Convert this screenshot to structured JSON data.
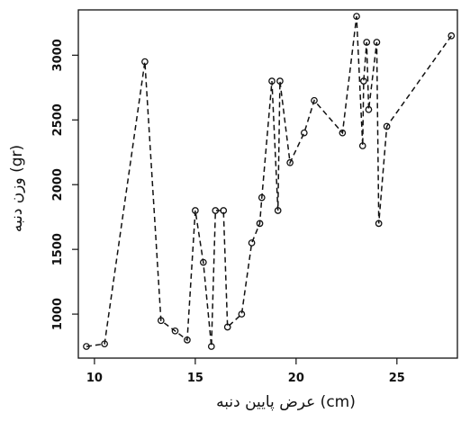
{
  "chart_data": {
    "type": "line",
    "xlabel": "عرض پایین دنبه (cm)",
    "ylabel": "وزن دنبه (gr)",
    "xlim": [
      9.2,
      28.0
    ],
    "ylim": [
      660,
      3350
    ],
    "x_ticks": [
      10,
      15,
      20,
      25
    ],
    "y_ticks": [
      1000,
      1500,
      2000,
      2500,
      3000
    ],
    "line_style": "dashed",
    "marker": "open-circle",
    "grid": false,
    "legend": "none",
    "series": [
      {
        "x": [
          9.6,
          10.5,
          12.5,
          13.3,
          14.0,
          14.6,
          15.0,
          15.4,
          15.8,
          16.0,
          16.4,
          16.6,
          17.3,
          17.8,
          18.2,
          18.3,
          18.8,
          19.1,
          19.2,
          19.7,
          20.4,
          20.9,
          22.3,
          23.0,
          23.3,
          23.35,
          23.5,
          23.6,
          24.0,
          24.1,
          24.5,
          27.7
        ],
        "y": [
          750,
          770,
          2950,
          950,
          870,
          800,
          1800,
          1400,
          750,
          1800,
          1800,
          900,
          1000,
          1550,
          1700,
          1900,
          2800,
          1800,
          2800,
          2170,
          2400,
          2650,
          2400,
          3300,
          2300,
          2800,
          3100,
          2580,
          3100,
          1700,
          2450,
          3150
        ]
      }
    ]
  }
}
